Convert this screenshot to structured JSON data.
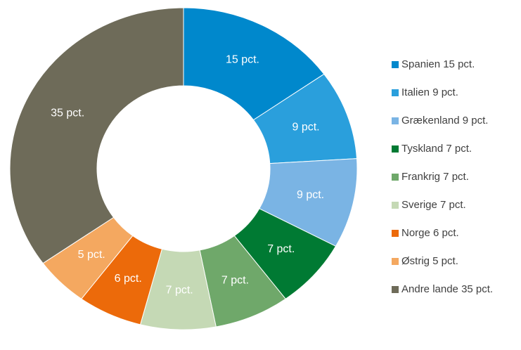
{
  "chart_data": {
    "type": "donut",
    "categories": [
      "Spanien 15 pct.",
      "Italien 9 pct.",
      "Grækenland 9 pct.",
      "Tyskland 7 pct.",
      "Frankrig 7 pct.",
      "Sverige 7 pct.",
      "Norge 6 pct.",
      "Østrig 5 pct.",
      "Andre lande 35 pct."
    ],
    "values": [
      15,
      9,
      9,
      7,
      7,
      7,
      6,
      5,
      35
    ],
    "value_labels": [
      "15 pct.",
      "9 pct.",
      "9 pct.",
      "7 pct.",
      "7 pct.",
      "7 pct.",
      "6 pct.",
      "5 pct.",
      "35 pct."
    ],
    "colors": [
      "#0088cc",
      "#2a9fdc",
      "#7ab4e4",
      "#007a33",
      "#6fa86a",
      "#c5d9b5",
      "#ec6a0a",
      "#f4a860",
      "#6e6b59"
    ],
    "legend": "right"
  }
}
